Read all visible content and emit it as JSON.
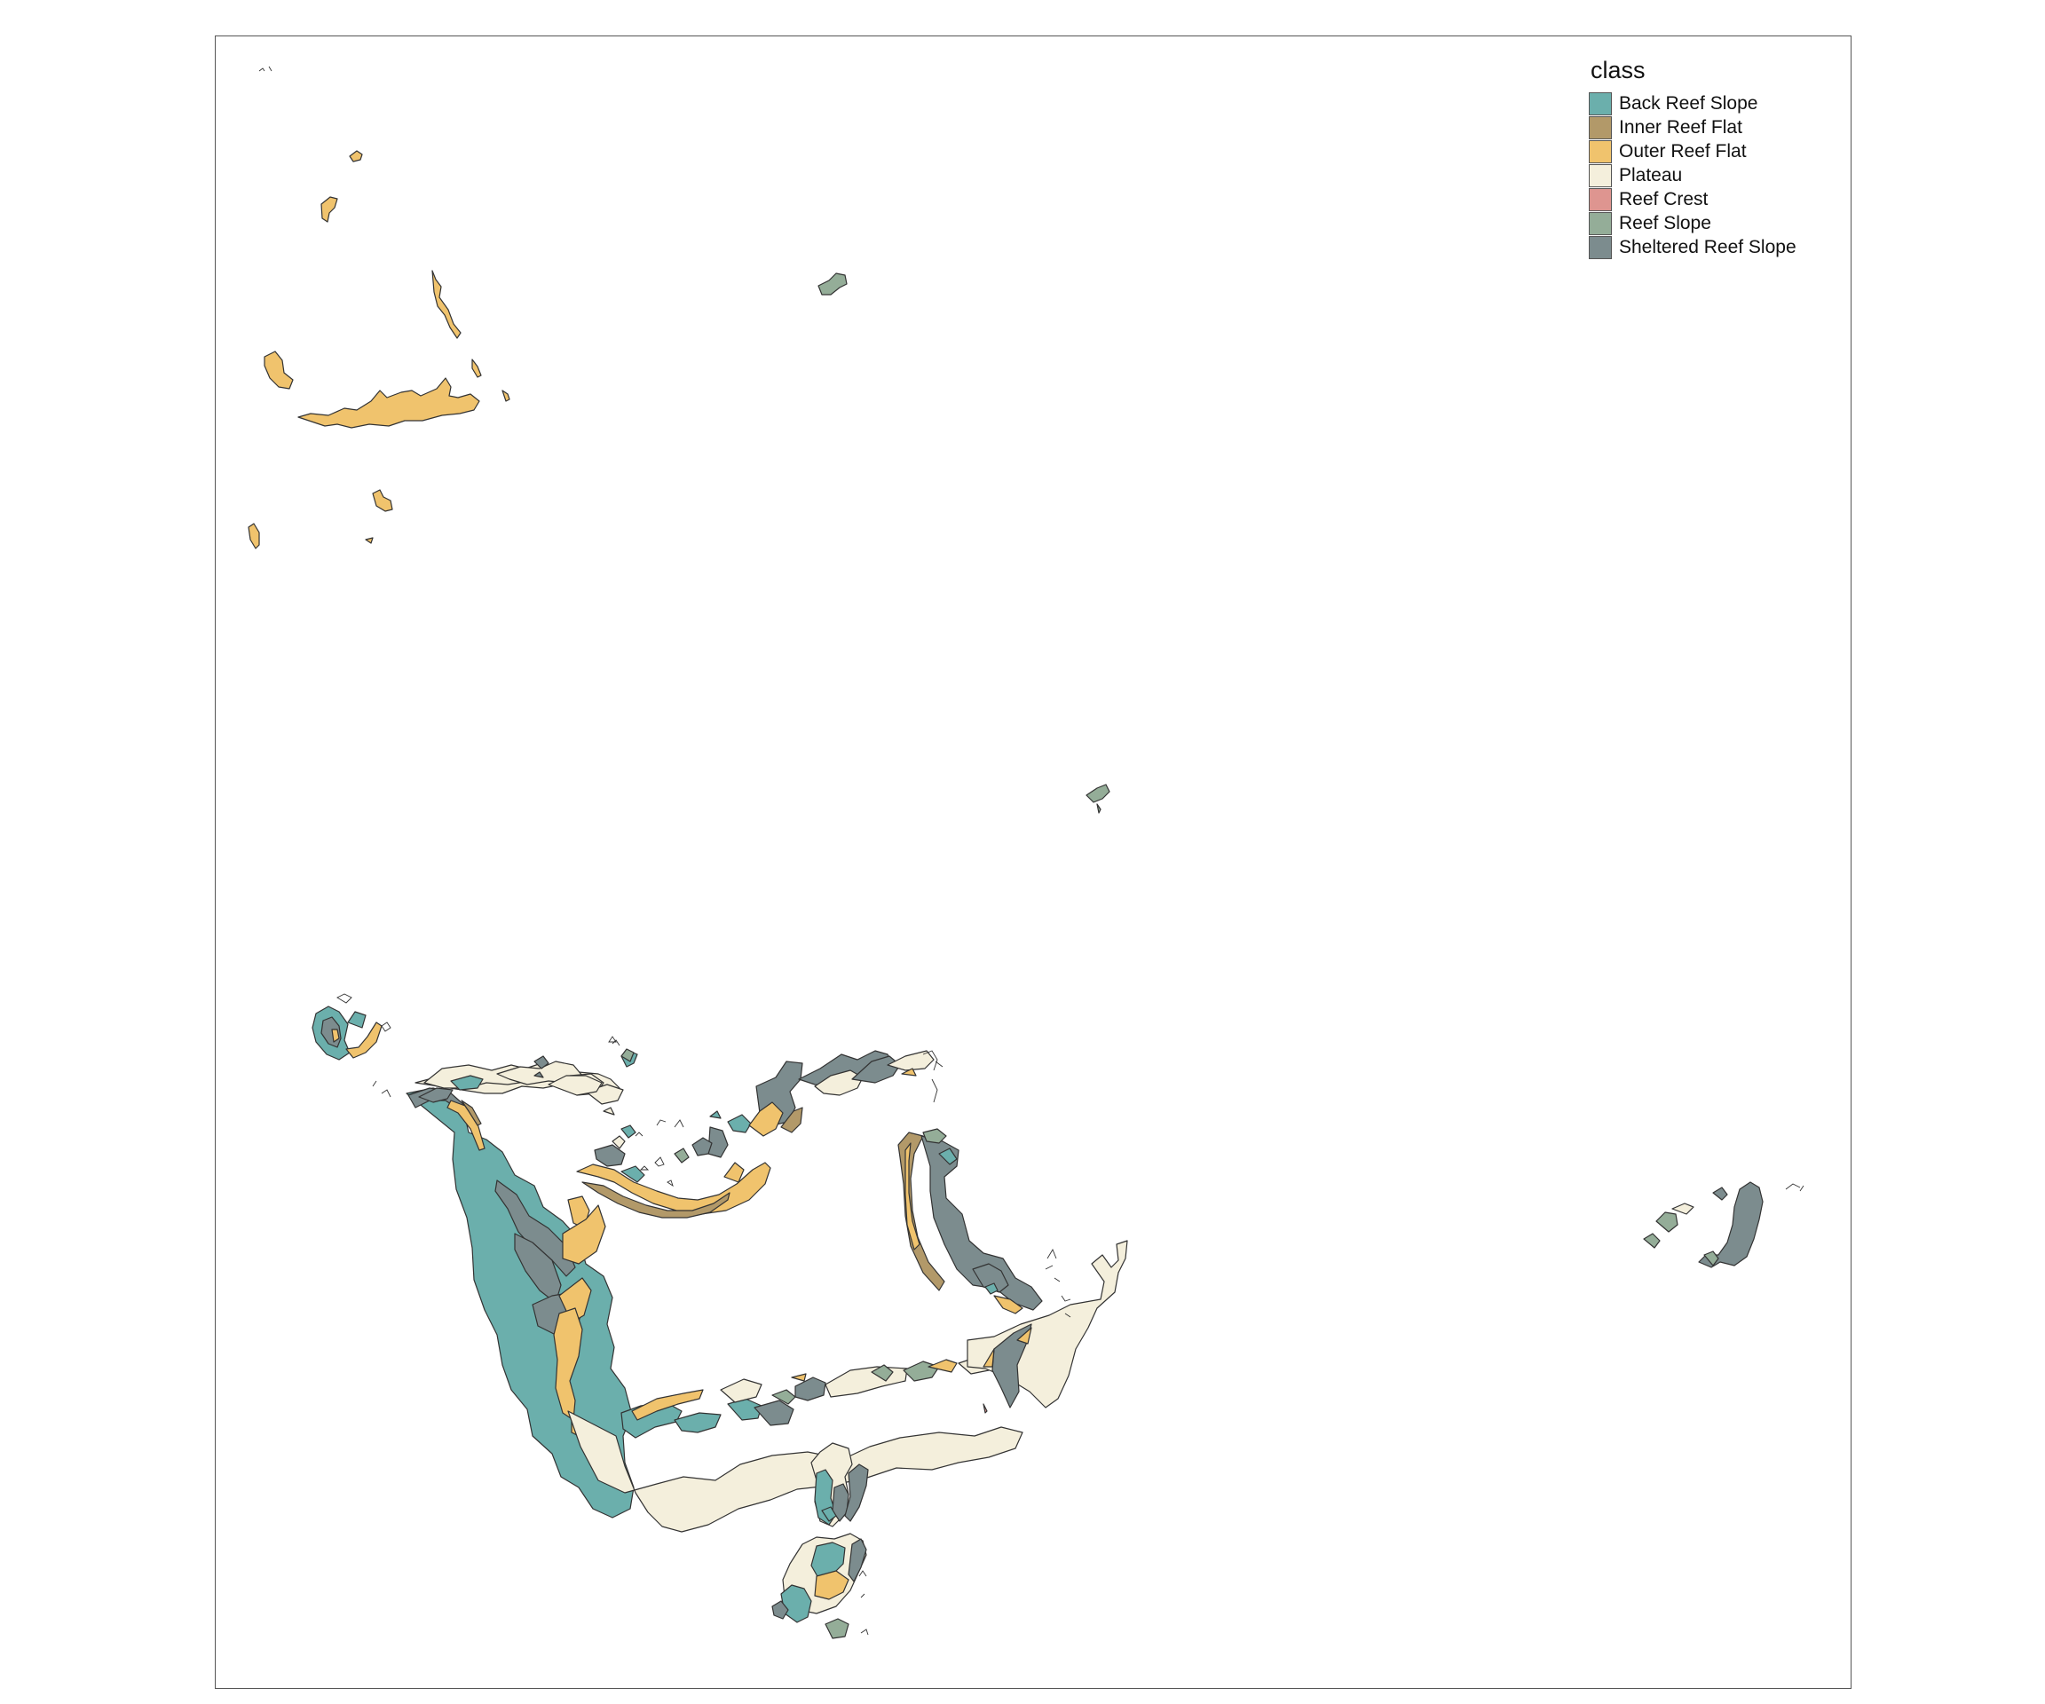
{
  "legend": {
    "title": "class",
    "items": [
      {
        "label": "Back Reef Slope",
        "color": "#6BAFAC"
      },
      {
        "label": "Inner Reef Flat",
        "color": "#B29969"
      },
      {
        "label": "Outer Reef Flat",
        "color": "#F0C36D"
      },
      {
        "label": "Plateau",
        "color": "#F4EFDC"
      },
      {
        "label": "Reef Crest",
        "color": "#DE9590"
      },
      {
        "label": "Reef Slope",
        "color": "#94AD98"
      },
      {
        "label": "Sheltered Reef Slope",
        "color": "#7C8C8E"
      }
    ]
  }
}
